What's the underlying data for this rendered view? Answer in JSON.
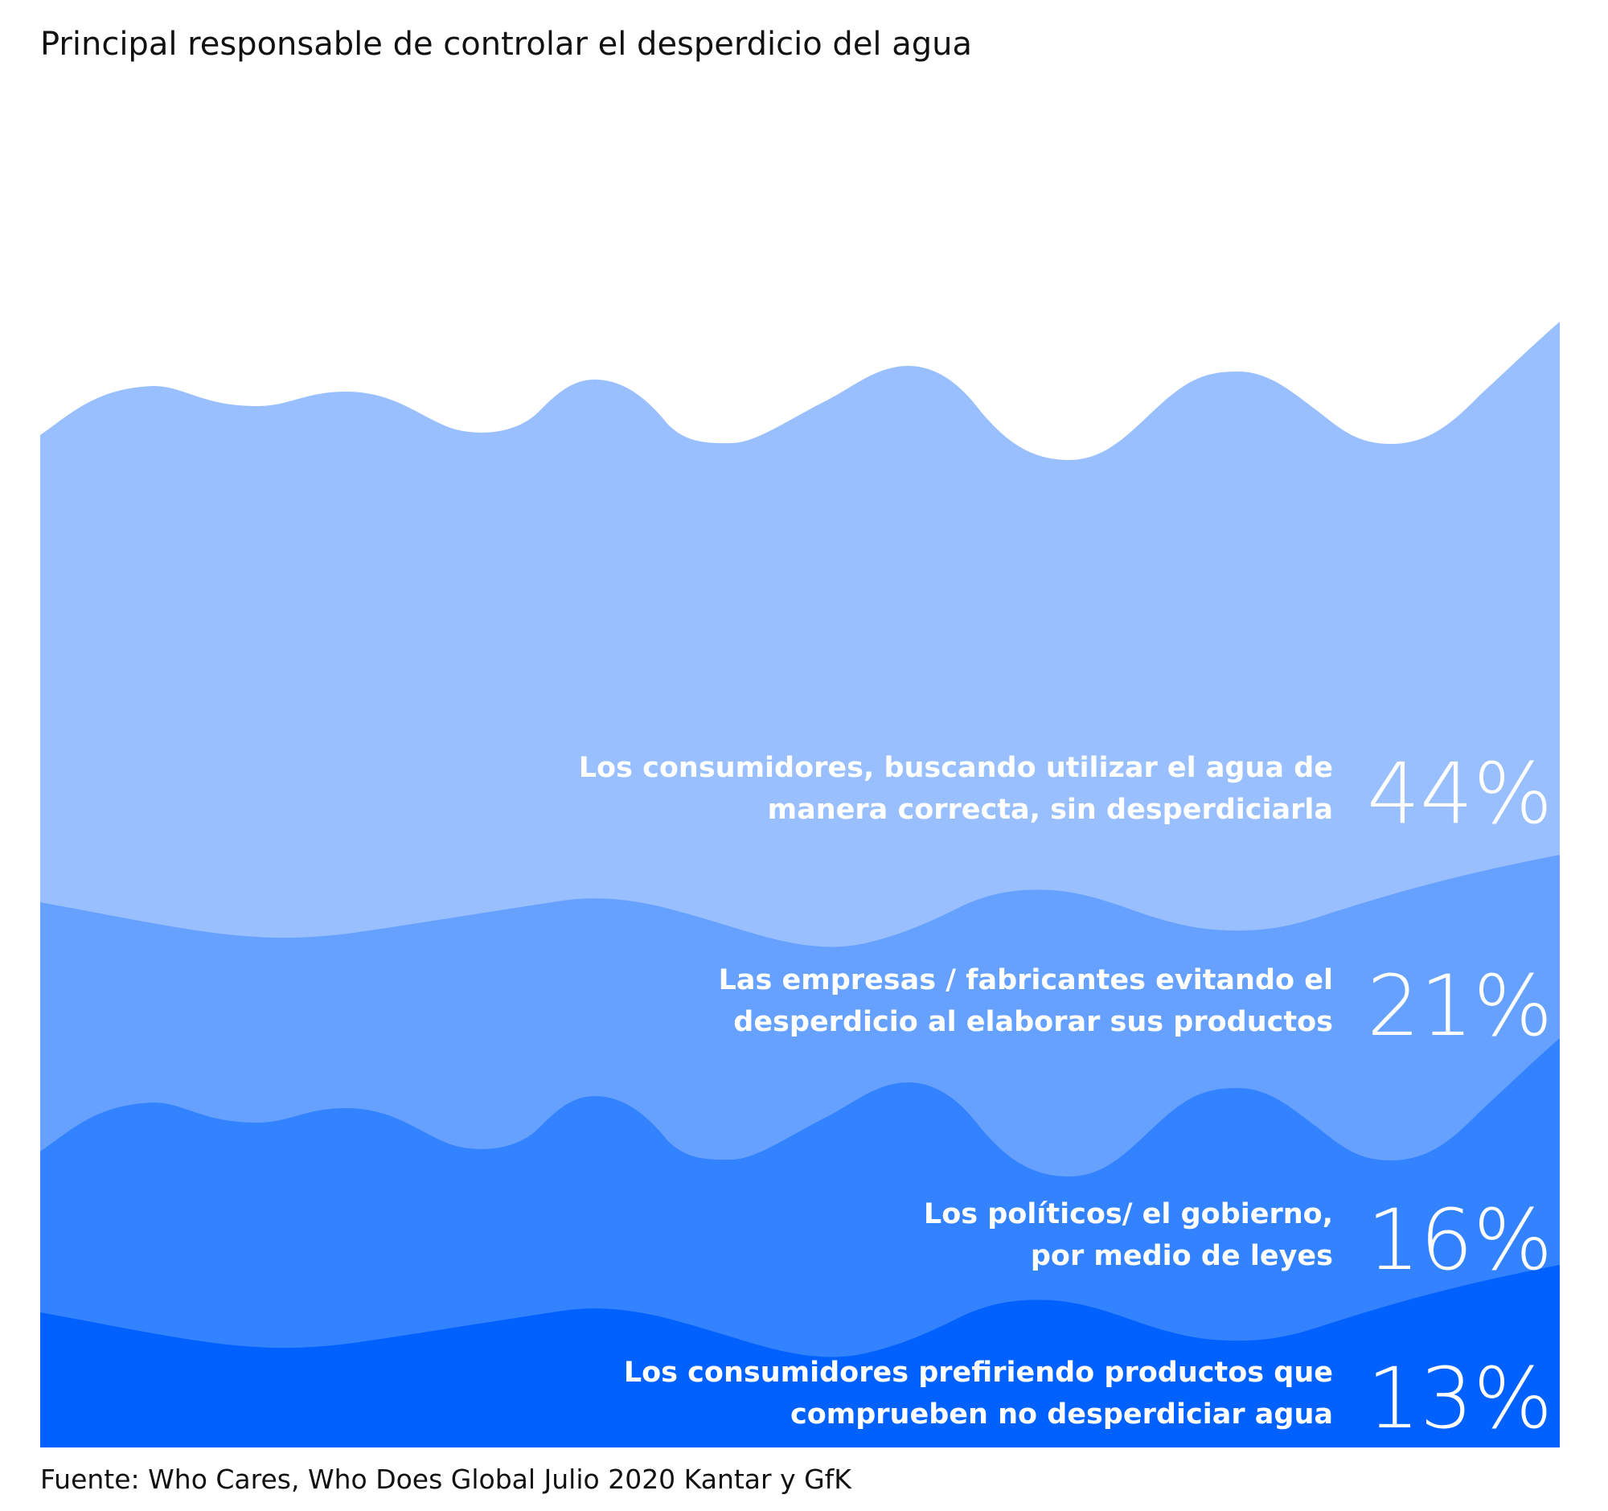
{
  "chart_data": {
    "type": "area",
    "title": "Principal responsable de controlar el desperdicio del agua",
    "unit": "%",
    "series": [
      {
        "label_lines": [
          "Los consumidores, buscando utilizar el agua de",
          "manera correcta, sin desperdiciarla"
        ],
        "value": 44,
        "value_label": "44%",
        "color": "#99BFFF"
      },
      {
        "label_lines": [
          "Las empresas / fabricantes evitando el",
          "desperdicio al elaborar sus productos"
        ],
        "value": 21,
        "value_label": "21%",
        "color": "#66A1FF"
      },
      {
        "label_lines": [
          "Los políticos/ el gobierno,",
          "por medio de leyes"
        ],
        "value": 16,
        "value_label": "16%",
        "color": "#3382FF"
      },
      {
        "label_lines": [
          "Los consumidores prefiriendo productos que",
          "comprueben no desperdiciar agua"
        ],
        "value": 13,
        "value_label": "13%",
        "color": "#0061FF"
      }
    ],
    "source": "Fuente: Who Cares, Who Does Global Julio 2020 Kantar y GfK"
  }
}
